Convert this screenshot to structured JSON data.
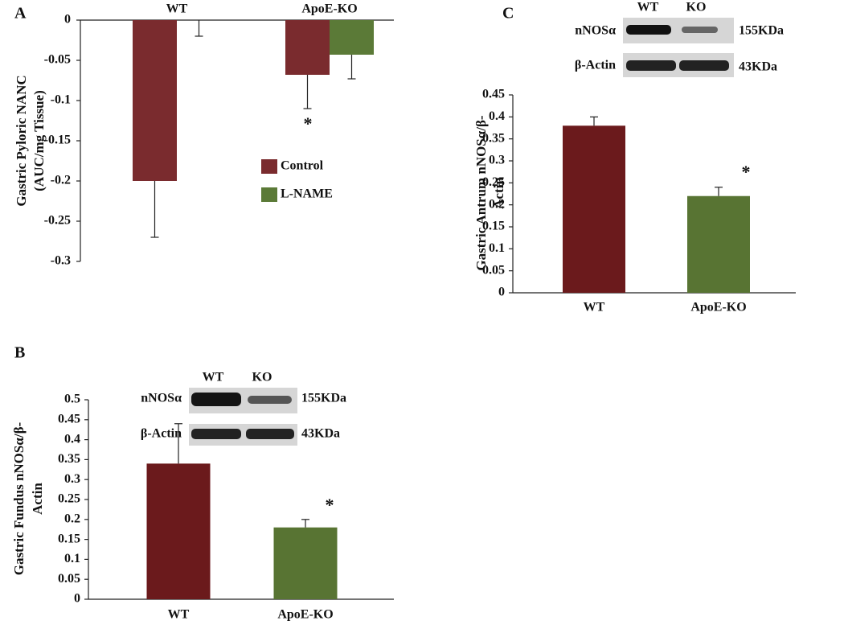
{
  "chart_data": [
    {
      "type": "bar",
      "panel": "A",
      "ylabel": [
        "Gastric Pyloric NANC",
        "(AUC/mg Tissue)"
      ],
      "categories": [
        "WT",
        "ApoE-KO"
      ],
      "series": [
        {
          "name": "Control",
          "color": "#7a2b2e",
          "values": [
            -0.2,
            -0.068
          ],
          "errors": [
            0.07,
            0.042
          ]
        },
        {
          "name": "L-NAME",
          "color": "#5b7a37",
          "values": [
            0,
            -0.043
          ],
          "errors": [
            0.02,
            0.03
          ]
        }
      ],
      "ylim": [
        -0.3,
        0
      ],
      "yticks": [
        0,
        -0.05,
        -0.1,
        -0.15,
        -0.2,
        -0.25,
        -0.3
      ],
      "annotations": [
        "*"
      ]
    },
    {
      "type": "bar",
      "panel": "B",
      "ylabel": [
        "Gastric Fundus nNOSα/β-",
        "Actin"
      ],
      "categories": [
        "WT",
        "ApoE-KO"
      ],
      "values": [
        0.34,
        0.18
      ],
      "errors": [
        0.1,
        0.02
      ],
      "colors": [
        "#6b1a1c",
        "#587433"
      ],
      "ylim": [
        0,
        0.5
      ],
      "yticks": [
        0,
        0.05,
        0.1,
        0.15,
        0.2,
        0.25,
        0.3,
        0.35,
        0.4,
        0.45,
        0.5
      ],
      "annotations": [
        "*"
      ],
      "blot": {
        "lanes": [
          "WT",
          "KO"
        ],
        "rows": [
          "nNOSα",
          "β-Actin"
        ],
        "sizes": [
          "155KDa",
          "43KDa"
        ]
      }
    },
    {
      "type": "bar",
      "panel": "C",
      "ylabel": [
        "Gastric Antrum nNOSα/β-",
        "Actin"
      ],
      "categories": [
        "WT",
        "ApoE-KO"
      ],
      "values": [
        0.38,
        0.22
      ],
      "errors": [
        0.02,
        0.02
      ],
      "colors": [
        "#6b1a1c",
        "#587433"
      ],
      "ylim": [
        0,
        0.45
      ],
      "yticks": [
        0,
        0.05,
        0.1,
        0.15,
        0.2,
        0.25,
        0.3,
        0.35,
        0.4,
        0.45
      ],
      "annotations": [
        "*"
      ],
      "blot": {
        "lanes": [
          "WT",
          "KO"
        ],
        "rows": [
          "nNOSα",
          "β-Actin"
        ],
        "sizes": [
          "155KDa",
          "43KDa"
        ]
      }
    }
  ]
}
